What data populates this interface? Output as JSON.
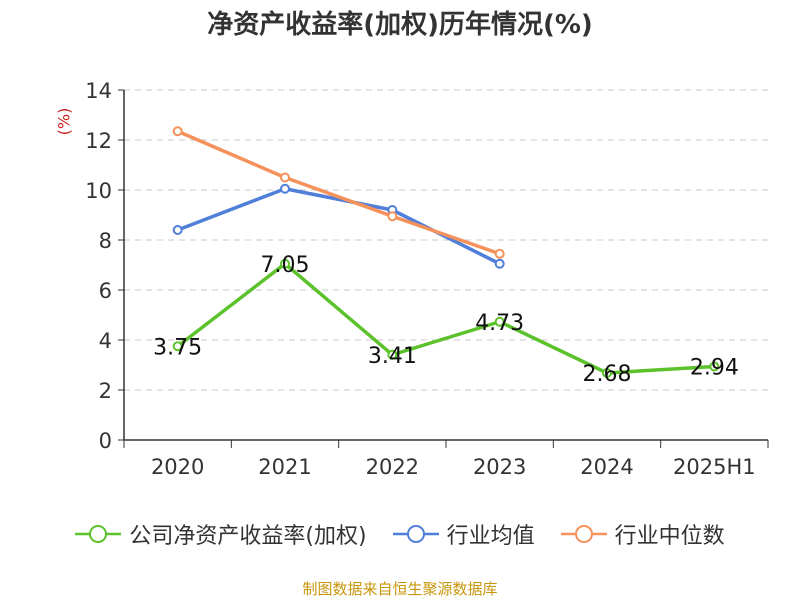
{
  "chart_data": {
    "type": "line",
    "title": "净资产收益率(加权)历年情况(%)",
    "ylabel": "(%)",
    "xlabel": "",
    "categories": [
      "2020",
      "2021",
      "2022",
      "2023",
      "2024",
      "2025H1"
    ],
    "ylim": [
      0,
      14
    ],
    "yticks": [
      0,
      2,
      4,
      6,
      8,
      10,
      12,
      14
    ],
    "grid": true,
    "legend_position": "bottom",
    "series": [
      {
        "name": "公司净资产收益率(加权)",
        "color": "#5cc22c",
        "values": [
          3.75,
          7.05,
          3.41,
          4.73,
          2.68,
          2.94
        ],
        "labels": [
          "3.75",
          "7.05",
          "3.41",
          "4.73",
          "2.68",
          "2.94"
        ]
      },
      {
        "name": "行业均值",
        "color": "#4f7fd9",
        "values": [
          8.4,
          10.05,
          9.2,
          7.05,
          null,
          null
        ]
      },
      {
        "name": "行业中位数",
        "color": "#f5915a",
        "values": [
          12.35,
          10.5,
          8.95,
          7.45,
          null,
          null
        ]
      }
    ]
  },
  "source": "制图数据来自恒生聚源数据库"
}
